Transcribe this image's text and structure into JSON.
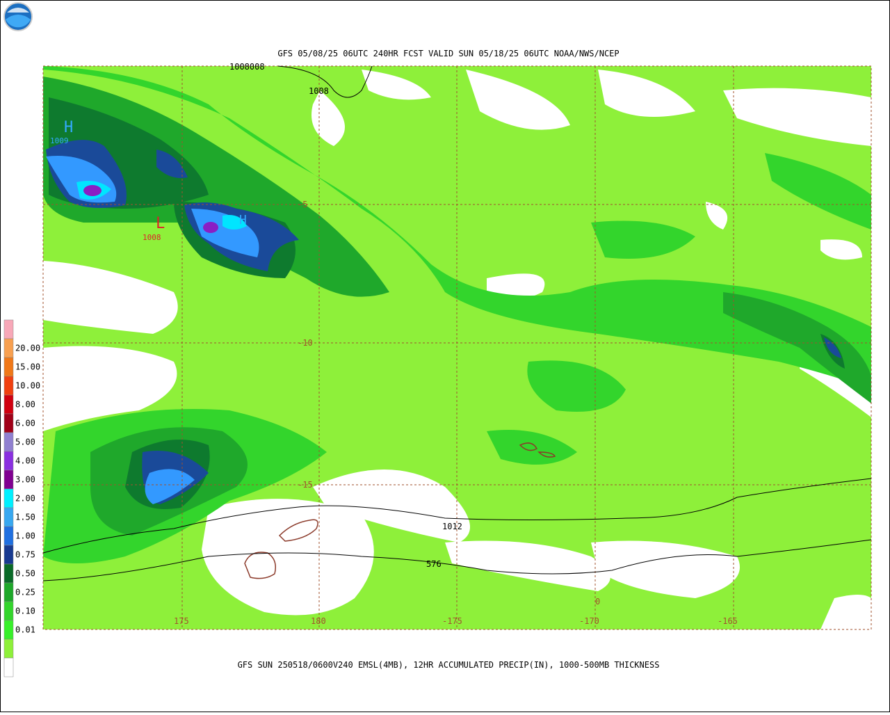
{
  "header": {
    "title": "GFS 05/08/25 06UTC 240HR FCST VALID SUN 05/18/25 06UTC NOAA/NWS/NCEP"
  },
  "map": {
    "lat_labels": [
      "-5",
      "-10",
      "-15"
    ],
    "lon_labels": [
      "175",
      "180",
      "-175",
      "-170",
      "-165"
    ],
    "annotations": {
      "high_1": "H",
      "high_1_value": "1009",
      "low_1": "L",
      "low_1_value": "1008",
      "high_2": "H",
      "isobar_top": "1008008",
      "isobar_1008": "1008",
      "isobar_1012": "1012",
      "thickness_576": "576",
      "contour_0": "0"
    }
  },
  "legend": {
    "labels": [
      "20.00",
      "15.00",
      "10.00",
      "8.00",
      "6.00",
      "5.00",
      "4.00",
      "3.00",
      "2.00",
      "1.50",
      "1.00",
      "0.75",
      "0.50",
      "0.25",
      "0.10",
      "0.01"
    ]
  },
  "footer": {
    "caption": "GFS SUN 250518/0600V240 EMSL(4MB), 12HR ACCUMULATED PRECIP(IN), 1000-500MB THICKNESS"
  }
}
